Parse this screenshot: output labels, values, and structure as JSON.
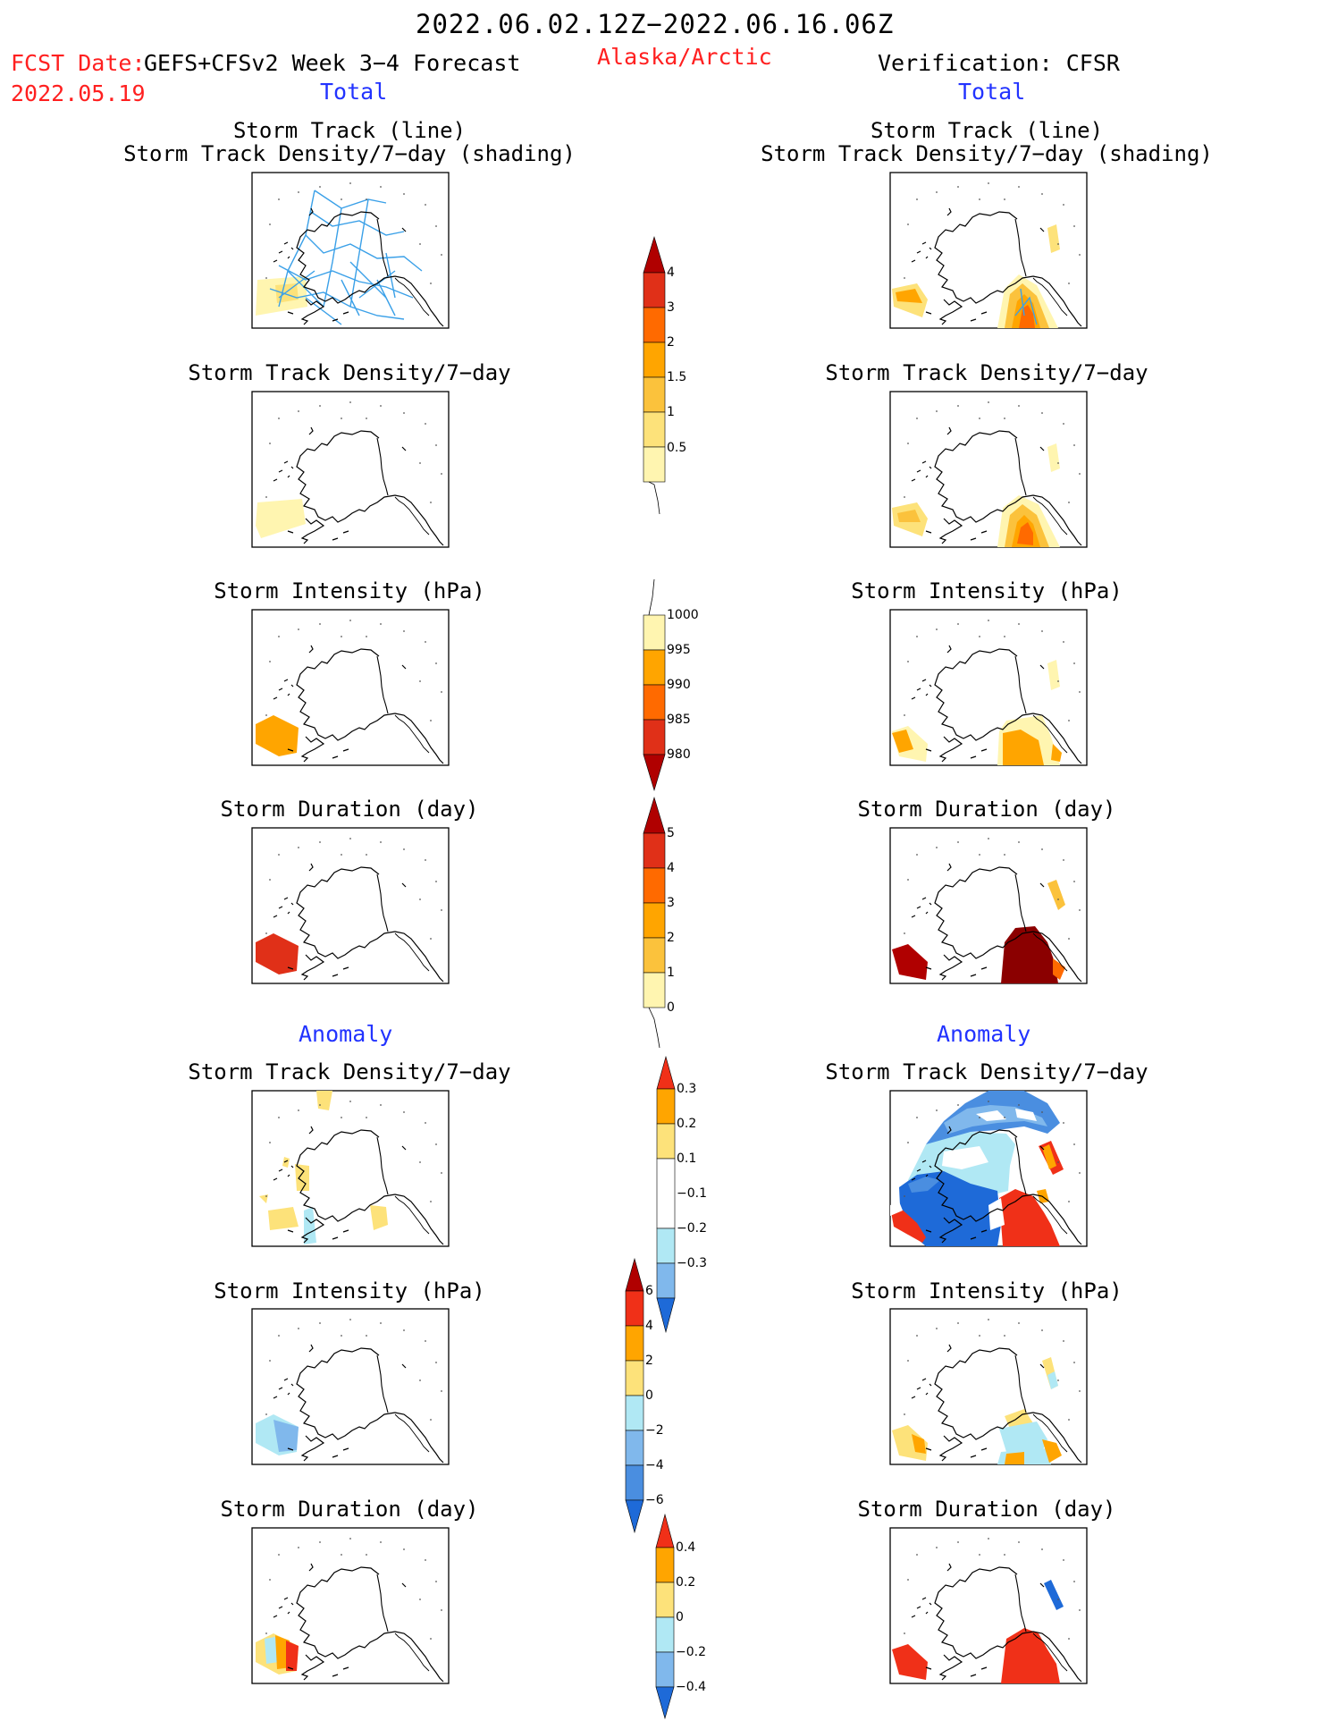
{
  "header": {
    "date_range": "2022.06.02.12Z−2022.06.16.06Z",
    "fcst_date_label": "FCST Date:",
    "forecast_label": "GEFS+CFSv2 Week 3−4 Forecast",
    "fcst_date_value": "2022.05.19",
    "region": "Alaska/Arctic",
    "verification": "Verification: CFSR",
    "total_left": "Total",
    "total_right": "Total",
    "anomaly_left": "Anomaly",
    "anomaly_right": "Anomaly"
  },
  "panel_titles": {
    "track_line": "Storm Track (line)",
    "track_shading": "Storm Track Density/7−day (shading)",
    "density": "Storm Track Density/7−day",
    "intensity": "Storm Intensity (hPa)",
    "duration": "Storm Duration (day)"
  },
  "colors": {
    "pale_yellow": "#fff5b0",
    "light_yellow": "#fde27a",
    "gold": "#fbc23c",
    "orange": "#ffa500",
    "dark_orange": "#ff6a00",
    "red": "#f03018",
    "dark_red": "#b00000",
    "maroon": "#8b0000",
    "light_blue": "#b0e8f4",
    "sky_blue": "#80b8ec",
    "mid_blue": "#4a8ee0",
    "blue": "#1e6ad8",
    "track_line": "#3aa0e8"
  },
  "chart_data": [
    {
      "type": "colorbar",
      "name": "total-density-scale",
      "levels": [
        "0.5",
        "1",
        "1.5",
        "2",
        "3",
        "4"
      ],
      "colors": [
        "#fff5b0",
        "#fde27a",
        "#fbc23c",
        "#ffa500",
        "#ff6a00",
        "#e03018",
        "#b00000"
      ]
    },
    {
      "type": "colorbar",
      "name": "total-intensity-scale",
      "levels": [
        "1000",
        "995",
        "990",
        "985",
        "980"
      ],
      "colors": [
        "#ffffff",
        "#fff5b0",
        "#ffa500",
        "#ff6a00",
        "#e03018",
        "#b00000"
      ]
    },
    {
      "type": "colorbar",
      "name": "total-duration-scale",
      "levels": [
        "0",
        "1",
        "2",
        "3",
        "4",
        "5"
      ],
      "colors": [
        "#ffffff",
        "#fff5b0",
        "#fbc23c",
        "#ffa500",
        "#ff6a00",
        "#e03018",
        "#b00000"
      ]
    },
    {
      "type": "colorbar",
      "name": "anomaly-density-scale",
      "levels": [
        "0.3",
        "0.2",
        "0.1",
        "−0.1",
        "−0.2",
        "−0.3"
      ],
      "colors": [
        "#f03018",
        "#ffa500",
        "#fde27a",
        "#ffffff",
        "#b0e8f4",
        "#80b8ec",
        "#1e6ad8"
      ]
    },
    {
      "type": "colorbar",
      "name": "anomaly-intensity-scale",
      "levels": [
        "6",
        "4",
        "2",
        "0",
        "−2",
        "−4",
        "−6"
      ],
      "colors": [
        "#b00000",
        "#f03018",
        "#ffa500",
        "#fde27a",
        "#b0e8f4",
        "#80b8ec",
        "#4a8ee0",
        "#1e6ad8"
      ]
    },
    {
      "type": "colorbar",
      "name": "anomaly-duration-scale",
      "levels": [
        "0.4",
        "0.2",
        "0",
        "−0.2",
        "−0.4"
      ],
      "colors": [
        "#f03018",
        "#ffa500",
        "#fde27a",
        "#b0e8f4",
        "#80b8ec",
        "#1e6ad8"
      ]
    }
  ]
}
